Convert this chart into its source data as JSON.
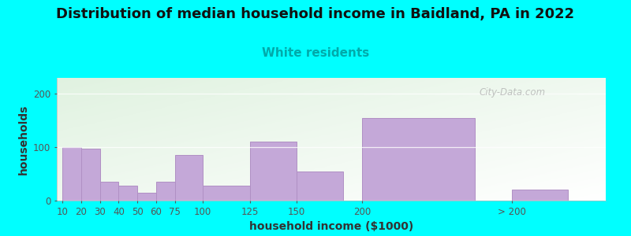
{
  "title": "Distribution of median household income in Baidland, PA in 2022",
  "subtitle": "White residents",
  "xlabel": "household income ($1000)",
  "ylabel": "households",
  "background_color": "#00FFFF",
  "bar_color": "#c4a8d8",
  "bar_edge_color": "#b090c4",
  "categories": [
    "10",
    "20",
    "30",
    "40",
    "50",
    "60",
    "75",
    "100",
    "125",
    "150",
    "200",
    "> 200"
  ],
  "values": [
    100,
    97,
    35,
    28,
    15,
    35,
    85,
    28,
    110,
    55,
    155,
    20
  ],
  "lefts": [
    0,
    10,
    20,
    30,
    40,
    50,
    60,
    75,
    100,
    125,
    160,
    240
  ],
  "widths": [
    10,
    10,
    10,
    10,
    10,
    10,
    15,
    25,
    25,
    25,
    60,
    30
  ],
  "xlim": [
    -3,
    290
  ],
  "ylim": [
    0,
    230
  ],
  "yticks": [
    0,
    100,
    200
  ],
  "watermark": "City-Data.com",
  "title_fontsize": 13,
  "subtitle_fontsize": 11,
  "subtitle_color": "#00aaaa",
  "axis_label_fontsize": 10,
  "tick_fontsize": 8.5
}
